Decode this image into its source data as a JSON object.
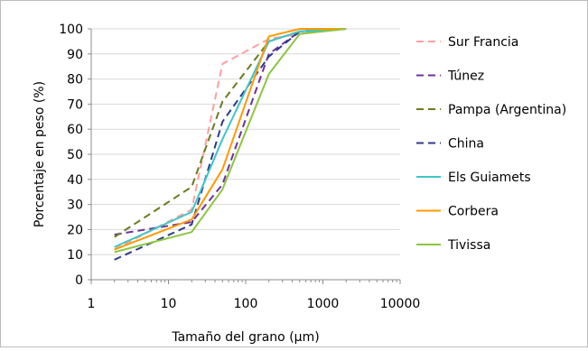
{
  "chart_data": {
    "type": "line",
    "title": "",
    "xlabel": "Tamaño del grano (µm)",
    "ylabel": "Porcentaje en peso (%)",
    "xscale": "log",
    "xlim": [
      1,
      10000
    ],
    "ylim": [
      0,
      100
    ],
    "xticks": [
      "1",
      "10",
      "100",
      "1000",
      "10000"
    ],
    "yticks": [
      "0",
      "10",
      "20",
      "30",
      "40",
      "50",
      "60",
      "70",
      "80",
      "90",
      "100"
    ],
    "grid": "horizontal",
    "legend_position": "right",
    "series": [
      {
        "name": "Sur Francia",
        "color": "#ff9f9f",
        "dash": "dashed",
        "x": [
          2,
          20,
          50,
          200,
          500,
          2000
        ],
        "y": [
          12,
          28,
          86,
          96,
          98,
          100
        ]
      },
      {
        "name": "Túnez",
        "color": "#7030a0",
        "dash": "dashed",
        "x": [
          2,
          20,
          50,
          200,
          500,
          2000
        ],
        "y": [
          18,
          23,
          38,
          90,
          99,
          100
        ]
      },
      {
        "name": "Pampa (Argentina)",
        "color": "#6b7a1f",
        "dash": "dashed",
        "x": [
          2,
          20,
          50,
          200,
          500,
          2000
        ],
        "y": [
          17,
          37,
          71,
          95,
          99,
          100
        ]
      },
      {
        "name": "China",
        "color": "#2e3a8c",
        "dash": "dashed",
        "x": [
          2,
          20,
          50,
          200,
          500,
          2000
        ],
        "y": [
          8,
          22,
          63,
          89,
          99,
          100
        ]
      },
      {
        "name": "Els Guiamets",
        "color": "#3ec6c6",
        "dash": "solid",
        "x": [
          2,
          20,
          50,
          200,
          500,
          2000
        ],
        "y": [
          13,
          27,
          56,
          95,
          99,
          100
        ]
      },
      {
        "name": "Corbera",
        "color": "#ff9900",
        "dash": "solid",
        "x": [
          2,
          20,
          50,
          200,
          500,
          2000
        ],
        "y": [
          12,
          24,
          44,
          97,
          100,
          100
        ]
      },
      {
        "name": "Tivissa",
        "color": "#8cc63e",
        "dash": "solid",
        "x": [
          2,
          20,
          50,
          200,
          500,
          2000
        ],
        "y": [
          11,
          19,
          36,
          82,
          98,
          100
        ]
      }
    ]
  }
}
